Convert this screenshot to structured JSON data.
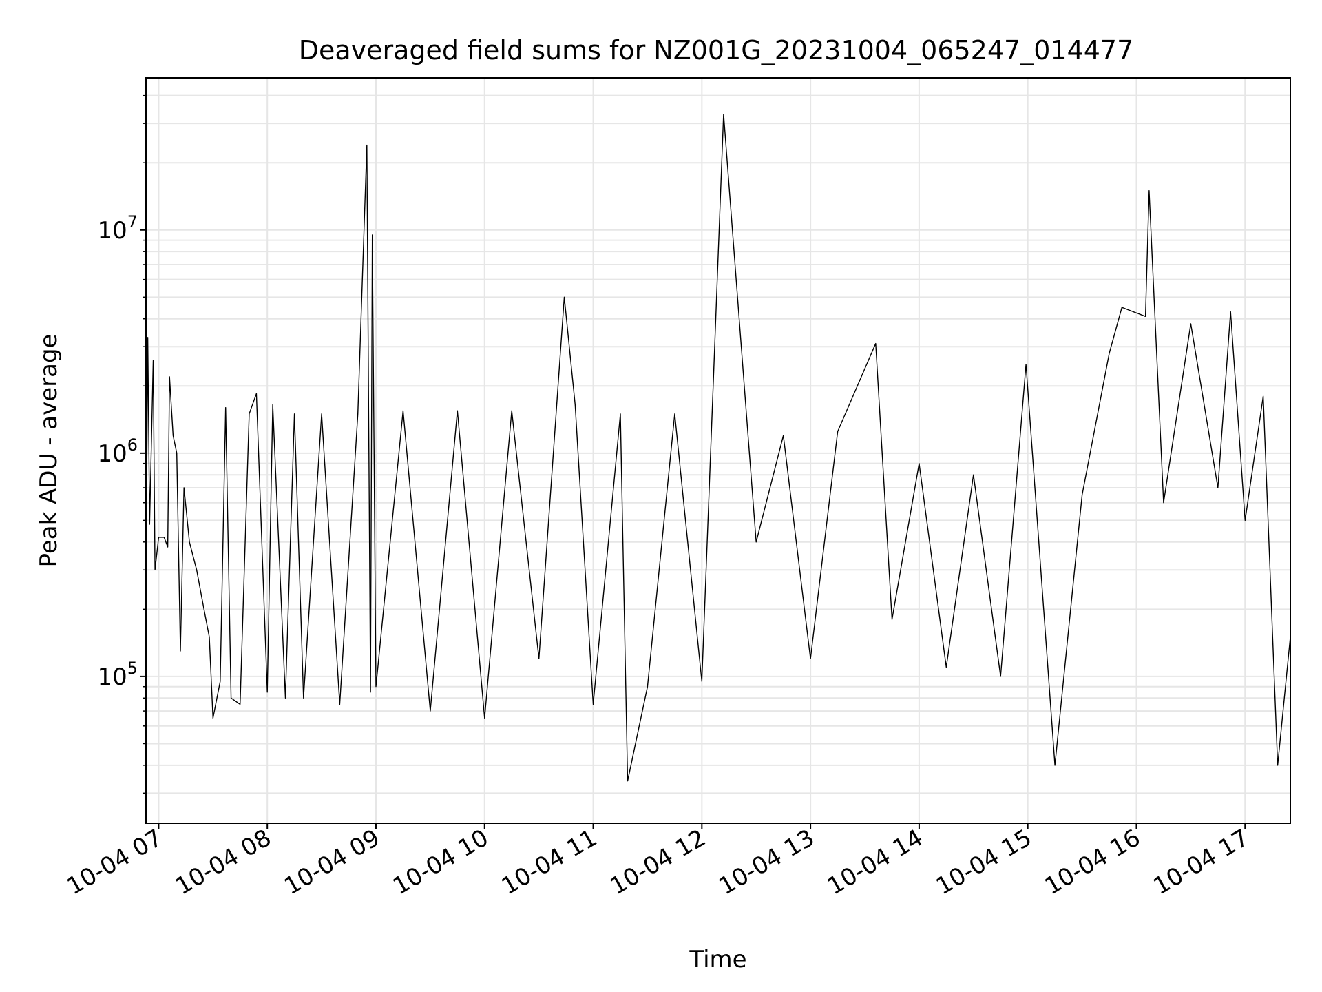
{
  "chart_data": {
    "type": "line",
    "title": "Deaveraged field sums for NZ001G_20231004_065247_014477",
    "xlabel": "Time",
    "ylabel": "Peak ADU - average",
    "x_tick_labels": [
      "10-04 07",
      "10-04 08",
      "10-04 09",
      "10-04 10",
      "10-04 11",
      "10-04 12",
      "10-04 13",
      "10-04 14",
      "10-04 15",
      "10-04 16",
      "10-04 17"
    ],
    "y_tick_labels": [
      {
        "base": "10",
        "exp": "5"
      },
      {
        "base": "10",
        "exp": "6"
      },
      {
        "base": "10",
        "exp": "7"
      }
    ],
    "x_range": [
      "2023-10-04 06:53",
      "2023-10-04 17:25"
    ],
    "y_range": [
      22000,
      48000000
    ],
    "y_scale": "log",
    "grid": true,
    "line_color": "#000000",
    "series": [
      {
        "name": "",
        "points": [
          [
            "2023-10-04 06:53",
            260000
          ],
          [
            "2023-10-04 06:54",
            3300000
          ],
          [
            "2023-10-04 06:55",
            480000
          ],
          [
            "2023-10-04 06:57",
            2600000
          ],
          [
            "2023-10-04 06:58",
            300000
          ],
          [
            "2023-10-04 07:00",
            420000
          ],
          [
            "2023-10-04 07:03",
            420000
          ],
          [
            "2023-10-04 07:05",
            380000
          ],
          [
            "2023-10-04 07:06",
            2200000
          ],
          [
            "2023-10-04 07:08",
            1200000
          ],
          [
            "2023-10-04 07:10",
            1000000
          ],
          [
            "2023-10-04 07:12",
            130000
          ],
          [
            "2023-10-04 07:14",
            700000
          ],
          [
            "2023-10-04 07:17",
            400000
          ],
          [
            "2023-10-04 07:21",
            300000
          ],
          [
            "2023-10-04 07:25",
            200000
          ],
          [
            "2023-10-04 07:28",
            150000
          ],
          [
            "2023-10-04 07:30",
            65000
          ],
          [
            "2023-10-04 07:34",
            95000
          ],
          [
            "2023-10-04 07:37",
            1600000
          ],
          [
            "2023-10-04 07:40",
            80000
          ],
          [
            "2023-10-04 07:45",
            75000
          ],
          [
            "2023-10-04 07:50",
            1500000
          ],
          [
            "2023-10-04 07:54",
            1850000
          ],
          [
            "2023-10-04 08:00",
            85000
          ],
          [
            "2023-10-04 08:03",
            1650000
          ],
          [
            "2023-10-04 08:10",
            80000
          ],
          [
            "2023-10-04 08:15",
            1500000
          ],
          [
            "2023-10-04 08:20",
            80000
          ],
          [
            "2023-10-04 08:30",
            1500000
          ],
          [
            "2023-10-04 08:40",
            75000
          ],
          [
            "2023-10-04 08:50",
            1500000
          ],
          [
            "2023-10-04 08:55",
            24000000
          ],
          [
            "2023-10-04 08:57",
            85000
          ],
          [
            "2023-10-04 08:58",
            9500000
          ],
          [
            "2023-10-04 09:00",
            90000
          ],
          [
            "2023-10-04 09:15",
            1550000
          ],
          [
            "2023-10-04 09:30",
            70000
          ],
          [
            "2023-10-04 09:45",
            1550000
          ],
          [
            "2023-10-04 10:00",
            65000
          ],
          [
            "2023-10-04 10:15",
            1550000
          ],
          [
            "2023-10-04 10:30",
            120000
          ],
          [
            "2023-10-04 10:44",
            5000000
          ],
          [
            "2023-10-04 10:50",
            1650000
          ],
          [
            "2023-10-04 11:00",
            75000
          ],
          [
            "2023-10-04 11:15",
            1500000
          ],
          [
            "2023-10-04 11:19",
            34000
          ],
          [
            "2023-10-04 11:30",
            90000
          ],
          [
            "2023-10-04 11:45",
            1500000
          ],
          [
            "2023-10-04 12:00",
            95000
          ],
          [
            "2023-10-04 12:12",
            33000000
          ],
          [
            "2023-10-04 12:30",
            400000
          ],
          [
            "2023-10-04 12:45",
            1200000
          ],
          [
            "2023-10-04 13:00",
            120000
          ],
          [
            "2023-10-04 13:15",
            1250000
          ],
          [
            "2023-10-04 13:36",
            3100000
          ],
          [
            "2023-10-04 13:45",
            180000
          ],
          [
            "2023-10-04 14:00",
            900000
          ],
          [
            "2023-10-04 14:15",
            110000
          ],
          [
            "2023-10-04 14:30",
            800000
          ],
          [
            "2023-10-04 14:45",
            100000
          ],
          [
            "2023-10-04 14:59",
            2500000
          ],
          [
            "2023-10-04 15:15",
            40000
          ],
          [
            "2023-10-04 15:30",
            650000
          ],
          [
            "2023-10-04 15:45",
            2800000
          ],
          [
            "2023-10-04 15:52",
            4500000
          ],
          [
            "2023-10-04 16:05",
            4100000
          ],
          [
            "2023-10-04 16:07",
            15000000
          ],
          [
            "2023-10-04 16:15",
            600000
          ],
          [
            "2023-10-04 16:30",
            3800000
          ],
          [
            "2023-10-04 16:45",
            700000
          ],
          [
            "2023-10-04 16:52",
            4300000
          ],
          [
            "2023-10-04 17:00",
            500000
          ],
          [
            "2023-10-04 17:10",
            1800000
          ],
          [
            "2023-10-04 17:18",
            40000
          ],
          [
            "2023-10-04 17:25",
            150000
          ]
        ]
      }
    ]
  }
}
